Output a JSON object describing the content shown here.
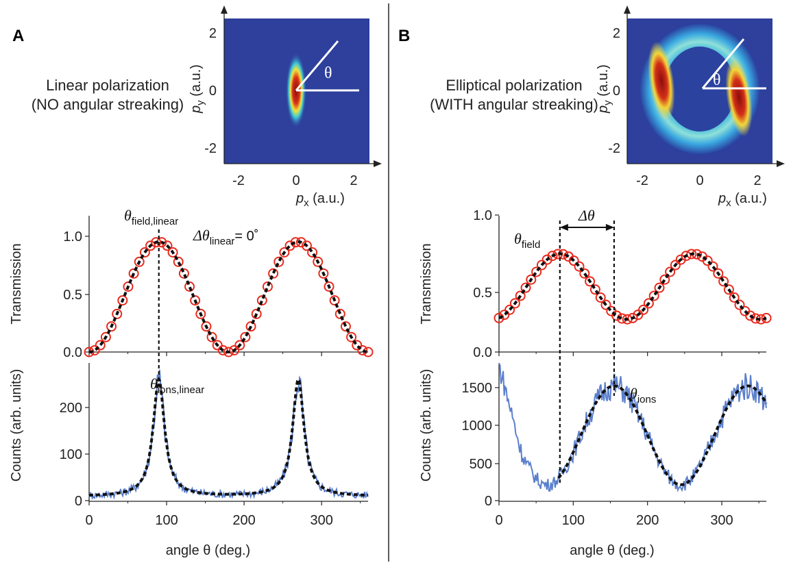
{
  "panels": [
    {
      "letter": "A",
      "caption_line1": "Linear polarization",
      "caption_line2": "(NO angular streaking)",
      "map_label": "θ",
      "map_xlabel": "p",
      "map_xlabel_sub": "x",
      "map_xlabel_unit": " (a.u.)",
      "map_ylabel": "p",
      "map_ylabel_sub": "y",
      "map_ylabel_unit": " (a.u.)",
      "map_ticks": [
        "-2",
        "0",
        "2"
      ],
      "annot_field_main": "θ",
      "annot_field_sub": "field,linear",
      "annot_delta_main": "Δθ",
      "annot_delta_sub": "linear",
      "annot_delta_value": "= 0˚",
      "annot_ions_main": "θ",
      "annot_ions_sub": "ions,linear"
    },
    {
      "letter": "B",
      "caption_line1": "Elliptical polarization",
      "caption_line2": "(WITH angular streaking)",
      "map_label": "θ",
      "map_xlabel": "p",
      "map_xlabel_sub": "x",
      "map_xlabel_unit": " (a.u.)",
      "map_ylabel": "p",
      "map_ylabel_sub": "y",
      "map_ylabel_unit": " (a.u.)",
      "map_ticks": [
        "-2",
        "0",
        "2"
      ],
      "annot_field_main": "θ",
      "annot_field_sub": "field",
      "annot_delta_main": "Δθ",
      "annot_ions_main": "θ",
      "annot_ions_sub": "ions"
    }
  ],
  "chart_data": [
    {
      "panel": "A",
      "type": "line",
      "ylabel": "Transmission",
      "xlim": [
        0,
        360
      ],
      "ylim": [
        0,
        1.2
      ],
      "yticks": [
        "0.0",
        "0.5",
        "1.0"
      ],
      "series": [
        {
          "style": "circles",
          "color": "#e8291c",
          "model": "cos2",
          "amplitude": 0.97,
          "offset": 0.0,
          "peak": 90
        },
        {
          "style": "dashed-fit",
          "color": "#111111",
          "model": "cos2",
          "amplitude": 0.97,
          "offset": 0.0,
          "peak": 90
        }
      ],
      "marker_angle": 90
    },
    {
      "panel": "A",
      "type": "line",
      "ylabel": "Counts (arb. units)",
      "xlabel": "angle θ (deg.)",
      "xlim": [
        0,
        360
      ],
      "ylim": [
        0,
        290
      ],
      "xticks": [
        "0",
        "100",
        "200",
        "300"
      ],
      "yticks": [
        "0",
        "100",
        "200"
      ],
      "series": [
        {
          "style": "noisy-line",
          "color": "#5b7fcc",
          "model": "lorentz",
          "peaks": [
            90,
            270
          ],
          "height": 245,
          "base": 10,
          "width": 9
        },
        {
          "style": "dashed-fit",
          "color": "#111111",
          "model": "lorentz",
          "peaks": [
            90,
            270
          ],
          "height": 245,
          "base": 10,
          "width": 9
        }
      ]
    },
    {
      "panel": "B",
      "type": "line",
      "ylabel": "Transmission",
      "xlim": [
        0,
        360
      ],
      "ylim": [
        0,
        1.0
      ],
      "yticks": [
        "0.0",
        "0.5",
        "1.0"
      ],
      "series": [
        {
          "style": "circles",
          "color": "#e8291c",
          "model": "cos2",
          "amplitude": 0.48,
          "offset": 0.24,
          "peak": 82
        },
        {
          "style": "dashed-fit",
          "color": "#111111",
          "model": "cos2",
          "amplitude": 0.48,
          "offset": 0.24,
          "peak": 82
        }
      ],
      "marker_angles": [
        82,
        155
      ]
    },
    {
      "panel": "B",
      "type": "line",
      "ylabel": "Counts (arb. units)",
      "xlabel": "angle θ (deg.)",
      "xlim": [
        0,
        360
      ],
      "ylim": [
        0,
        1750
      ],
      "xticks": [
        "0",
        "100",
        "200",
        "300"
      ],
      "yticks": [
        "0",
        "500",
        "1000",
        "1500"
      ],
      "series": [
        {
          "style": "noisy-line",
          "color": "#5b7fcc",
          "model": "cos2",
          "amplitude": 1250,
          "offset": 210,
          "peak": 155
        },
        {
          "style": "dashed-fit",
          "color": "#111111",
          "model": "cos2",
          "amplitude": 1250,
          "offset": 210,
          "peak": 155
        }
      ]
    }
  ]
}
